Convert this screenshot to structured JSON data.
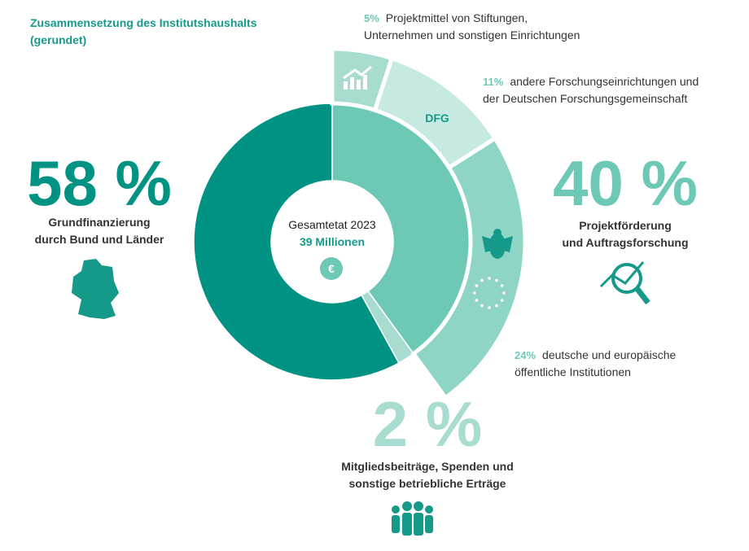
{
  "chart_data": {
    "type": "donut",
    "title": [
      "Zusammensetzung des Institutshaushalts",
      "(gerundet)"
    ],
    "center_text": [
      "Gesamtetat 2023",
      "39 Millionen"
    ],
    "currency": "€",
    "categories": [
      [
        "Grundfinanzierung",
        "durch Bund und Länder"
      ],
      [
        "Projektförderung",
        "und Auftragsforschung"
      ],
      [
        "Mitgliedsbeiträge, Spenden und",
        "sonstige betriebliche Erträge"
      ]
    ],
    "values": [
      58,
      40,
      2
    ],
    "value_labels": [
      "58 %",
      "40 %",
      "2 %"
    ],
    "colors": [
      "#009384",
      "#6dc8b5",
      "#a8dcd0"
    ],
    "breakdown": {
      "categories": [
        [
          "Projektmittel von Stiftungen,",
          "Unternehmen und sonstigen Einrichtungen"
        ],
        [
          "andere Forschungseinrichtungen und",
          "der Deutschen Forschungsgemeinschaft"
        ],
        [
          "deutsche und europäische",
          "öffentliche Institutionen"
        ]
      ],
      "values": [
        5,
        11,
        24
      ],
      "value_labels": [
        "5%",
        "11%",
        "24%"
      ],
      "colors": [
        "#a8dcd0",
        "#c6e9e1",
        "#8fd5c5"
      ],
      "segment_text": "DFG"
    }
  }
}
